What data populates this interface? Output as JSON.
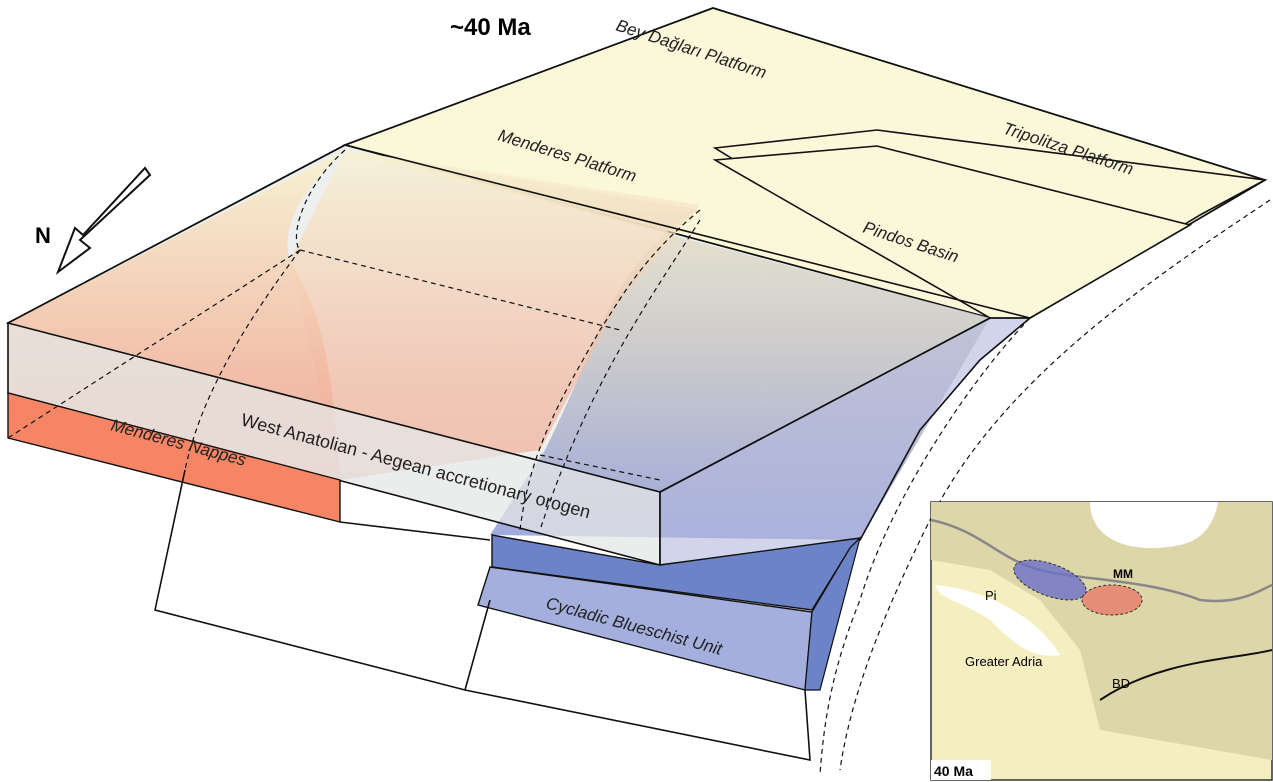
{
  "title": "~40 Ma",
  "north": "N",
  "units": {
    "bey_daglari": "Bey Dağları Platform",
    "menderes_platform": "Menderes Platform",
    "tripolitza": "Tripolitza Platform",
    "pindos": "Pindos Basin",
    "orogen": "West Anatolian - Aegean accretionary orogen",
    "menderes_nappes": "Menderes Nappes",
    "cycladic": "Cycladic Blueschist Unit"
  },
  "inset": {
    "mm": "MM",
    "pi": "Pi",
    "greater_adria": "Greater Adria",
    "bd": "BD",
    "age": "40 Ma"
  }
}
